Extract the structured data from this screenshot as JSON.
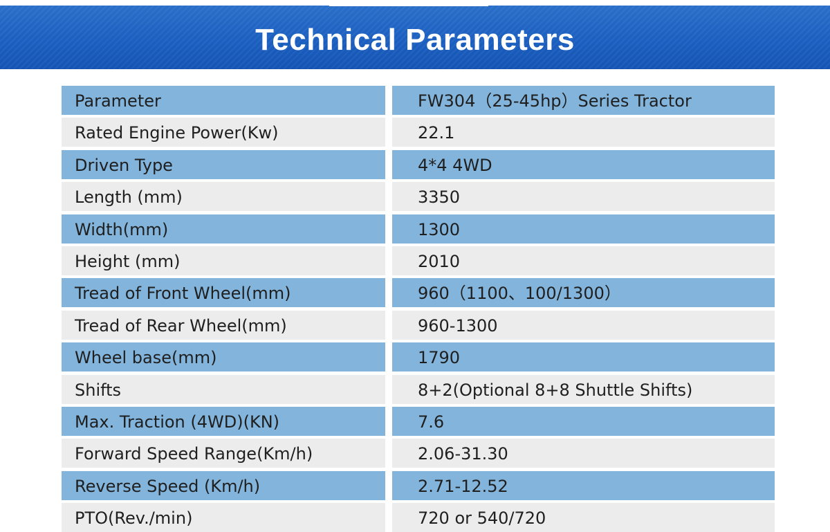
{
  "header": {
    "title": "Technical Parameters"
  },
  "colors": {
    "banner": "#1b5fc0",
    "row_dark": "#82b4dc",
    "row_light": "#ececec",
    "text": "#1f1f1f"
  },
  "table": {
    "rows": [
      {
        "parameter": "Parameter",
        "value": "FW304（25-45hp）Series Tractor"
      },
      {
        "parameter": "Rated Engine Power(Kw)",
        "value": "22.1"
      },
      {
        "parameter": "Driven Type",
        "value": "4*4 4WD"
      },
      {
        "parameter": "Length (mm)",
        "value": "3350"
      },
      {
        "parameter": "Width(mm)",
        "value": "1300"
      },
      {
        "parameter": "Height (mm)",
        "value": "2010"
      },
      {
        "parameter": "Tread of Front Wheel(mm)",
        "value": "960（1100、100/1300）"
      },
      {
        "parameter": "Tread of Rear Wheel(mm)",
        "value": "960-1300"
      },
      {
        "parameter": "Wheel base(mm)",
        "value": "1790"
      },
      {
        "parameter": "Shifts",
        "value": "8+2(Optional 8+8 Shuttle Shifts)"
      },
      {
        "parameter": "Max. Traction (4WD)(KN)",
        "value": "7.6"
      },
      {
        "parameter": "Forward Speed Range(Km/h)",
        "value": "2.06-31.30"
      },
      {
        "parameter": "Reverse Speed (Km/h)",
        "value": "2.71-12.52"
      },
      {
        "parameter": "PTO(Rev./min)",
        "value": "720 or 540/720"
      }
    ]
  }
}
